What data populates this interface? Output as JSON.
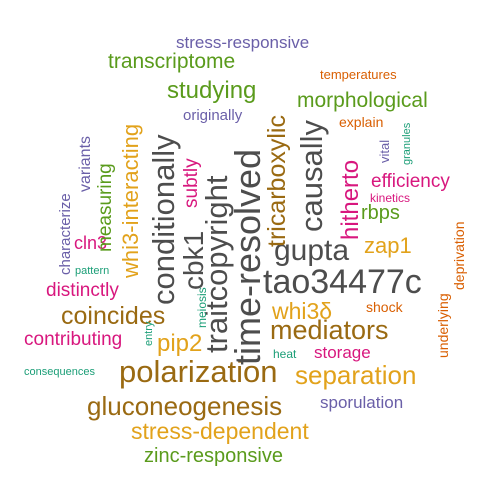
{
  "palette": {
    "grey": "#4d4d4d",
    "brown": "#9a6a12",
    "gold": "#e2a21b",
    "green": "#5a9b1c",
    "purple": "#6a5fa8",
    "magenta": "#d8177e",
    "orange": "#d95f02",
    "teal": "#1b9e77"
  },
  "words": [
    {
      "text": "stress-responsive",
      "color": "purple"
    },
    {
      "text": "transcriptome",
      "color": "green"
    },
    {
      "text": "temperatures",
      "color": "orange"
    },
    {
      "text": "tricarboxylic",
      "color": "brown"
    },
    {
      "text": "studying",
      "color": "green"
    },
    {
      "text": "morphological",
      "color": "green"
    },
    {
      "text": "originally",
      "color": "purple"
    },
    {
      "text": "explain",
      "color": "orange"
    },
    {
      "text": "whi3-interacting",
      "color": "gold"
    },
    {
      "text": "conditionally",
      "color": "grey"
    },
    {
      "text": "measuring",
      "color": "green"
    },
    {
      "text": "variants",
      "color": "purple"
    },
    {
      "text": "characterize",
      "color": "purple"
    },
    {
      "text": "subtly",
      "color": "magenta"
    },
    {
      "text": "causally",
      "color": "grey"
    },
    {
      "text": "vital",
      "color": "purple"
    },
    {
      "text": "granules",
      "color": "teal"
    },
    {
      "text": "time-resolved",
      "color": "grey"
    },
    {
      "text": "traitcopyright",
      "color": "grey"
    },
    {
      "text": "cbk1",
      "color": "grey"
    },
    {
      "text": "hitherto",
      "color": "magenta"
    },
    {
      "text": "efficiency",
      "color": "magenta"
    },
    {
      "text": "kinetics",
      "color": "magenta"
    },
    {
      "text": "rbps",
      "color": "green"
    },
    {
      "text": "zap1",
      "color": "gold"
    },
    {
      "text": "gupta",
      "color": "grey"
    },
    {
      "text": "cln3",
      "color": "magenta"
    },
    {
      "text": "pattern",
      "color": "teal"
    },
    {
      "text": "distinctly",
      "color": "magenta"
    },
    {
      "text": "tao34477c",
      "color": "grey"
    },
    {
      "text": "deprivation",
      "color": "orange"
    },
    {
      "text": "underlying",
      "color": "orange"
    },
    {
      "text": "coincides",
      "color": "brown"
    },
    {
      "text": "meiosis",
      "color": "teal"
    },
    {
      "text": "whi3δ",
      "color": "gold"
    },
    {
      "text": "shock",
      "color": "orange"
    },
    {
      "text": "mediators",
      "color": "brown"
    },
    {
      "text": "contributing",
      "color": "magenta"
    },
    {
      "text": "entry",
      "color": "teal"
    },
    {
      "text": "pip2",
      "color": "gold"
    },
    {
      "text": "heat",
      "color": "teal"
    },
    {
      "text": "storage",
      "color": "magenta"
    },
    {
      "text": "consequences",
      "color": "teal"
    },
    {
      "text": "polarization",
      "color": "brown"
    },
    {
      "text": "separation",
      "color": "gold"
    },
    {
      "text": "gluconeogenesis",
      "color": "brown"
    },
    {
      "text": "sporulation",
      "color": "purple"
    },
    {
      "text": "stress-dependent",
      "color": "gold"
    },
    {
      "text": "zinc-responsive",
      "color": "green"
    }
  ]
}
